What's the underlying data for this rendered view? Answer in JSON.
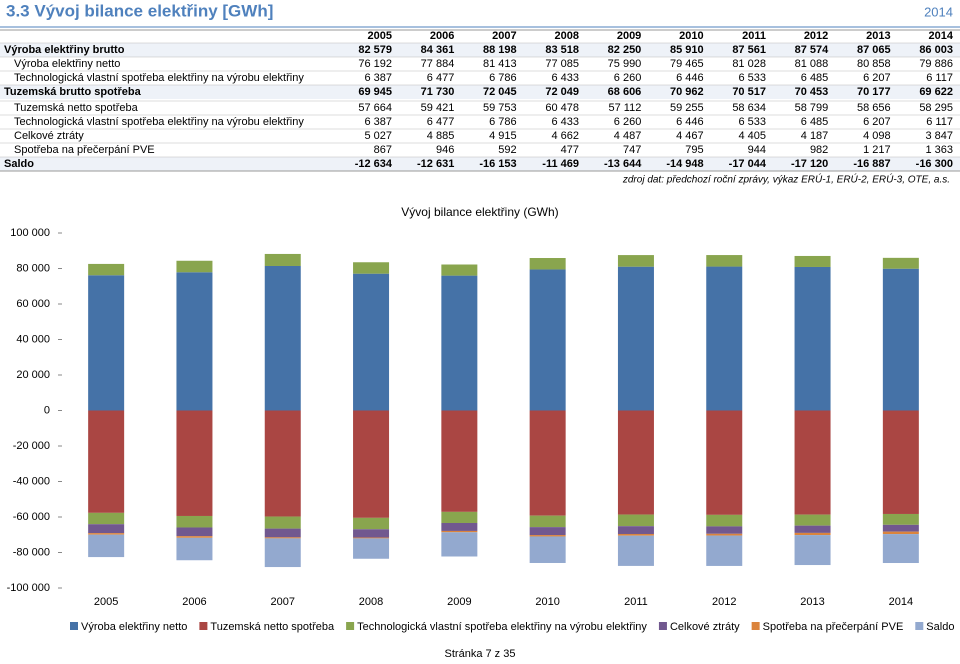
{
  "header": {
    "title": "3.3 Vývoj bilance elektřiny [GWh]",
    "year": "2014"
  },
  "table": {
    "years": [
      "2005",
      "2006",
      "2007",
      "2008",
      "2009",
      "2010",
      "2011",
      "2012",
      "2013",
      "2014"
    ],
    "rows": [
      {
        "label": "Výroba elektřiny brutto",
        "bold": true,
        "values": [
          "82 579",
          "84 361",
          "88 198",
          "83 518",
          "82 250",
          "85 910",
          "87 561",
          "87 574",
          "87 065",
          "86 003"
        ]
      },
      {
        "label": "Výroba elektřiny netto",
        "bold": false,
        "values": [
          "76 192",
          "77 884",
          "81 413",
          "77 085",
          "75 990",
          "79 465",
          "81 028",
          "81 088",
          "80 858",
          "79 886"
        ]
      },
      {
        "label": "Technologická vlastní spotřeba elektřiny na výrobu elektřiny",
        "bold": false,
        "values": [
          "6 387",
          "6 477",
          "6 786",
          "6 433",
          "6 260",
          "6 446",
          "6 533",
          "6 485",
          "6 207",
          "6 117"
        ]
      },
      {
        "label": "Tuzemská brutto spotřeba",
        "bold": true,
        "values": [
          "69 945",
          "71 730",
          "72 045",
          "72 049",
          "68 606",
          "70 962",
          "70 517",
          "70 453",
          "70 177",
          "69 622"
        ]
      },
      {
        "label": "Tuzemská netto spotřeba",
        "bold": false,
        "values": [
          "57 664",
          "59 421",
          "59 753",
          "60 478",
          "57 112",
          "59 255",
          "58 634",
          "58 799",
          "58 656",
          "58 295"
        ]
      },
      {
        "label": "Technologická vlastní spotřeba elektřiny na výrobu elektřiny",
        "bold": false,
        "values": [
          "6 387",
          "6 477",
          "6 786",
          "6 433",
          "6 260",
          "6 446",
          "6 533",
          "6 485",
          "6 207",
          "6 117"
        ]
      },
      {
        "label": "Celkové ztráty",
        "bold": false,
        "values": [
          "5 027",
          "4 885",
          "4 915",
          "4 662",
          "4 487",
          "4 467",
          "4 405",
          "4 187",
          "4 098",
          "3 847"
        ]
      },
      {
        "label": "Spotřeba na přečerpání PVE",
        "bold": false,
        "values": [
          "867",
          "946",
          "592",
          "477",
          "747",
          "795",
          "944",
          "982",
          "1 217",
          "1 363"
        ]
      },
      {
        "label": "Saldo",
        "bold": true,
        "values": [
          "-12 634",
          "-12 631",
          "-16 153",
          "-11 469",
          "-13 644",
          "-14 948",
          "-17 044",
          "-17 120",
          "-16 887",
          "-16 300"
        ]
      }
    ]
  },
  "source": "zdroj dat: předchozí roční zprávy, výkaz ERÚ-1, ERÚ-2, ERÚ-3, OTE, a.s.",
  "chart_data": {
    "type": "stacked_bar",
    "title": "Vývoj bilance elektřiny (GWh)",
    "categories": [
      "2005",
      "2006",
      "2007",
      "2008",
      "2009",
      "2010",
      "2011",
      "2012",
      "2013",
      "2014"
    ],
    "ylim": [
      -100000,
      100000
    ],
    "yticks": [
      {
        "value": -100000,
        "label": "-100 000"
      },
      {
        "value": -80000,
        "label": "-80 000"
      },
      {
        "value": -60000,
        "label": "-60 000"
      },
      {
        "value": -40000,
        "label": "-40 000"
      },
      {
        "value": -20000,
        "label": "-20 000"
      },
      0,
      {
        "value": 20000,
        "label": "20 000"
      },
      {
        "value": 40000,
        "label": "40 000"
      },
      {
        "value": 60000,
        "label": "60 000"
      },
      {
        "value": 80000,
        "label": "80 000"
      },
      {
        "value": 100000,
        "label": "100 000"
      }
    ],
    "grid": false,
    "series": [
      {
        "name": "Výroba elektřiny netto",
        "color": "#4572a7",
        "values": [
          76192,
          77884,
          81413,
          77085,
          75990,
          79465,
          81028,
          81088,
          80858,
          79886
        ]
      },
      {
        "name": "Tuzemská netto spotřeba",
        "color": "#aa4643",
        "values": [
          -57664,
          -59421,
          -59753,
          -60478,
          -57112,
          -59255,
          -58634,
          -58799,
          -58656,
          -58295
        ]
      },
      {
        "name": "Technologická vlastní spotřeba elektřiny na výrobu elektřiny",
        "color": "#89a54e",
        "both_stacks": true,
        "values": [
          6387,
          6477,
          6786,
          6433,
          6260,
          6446,
          6533,
          6485,
          6207,
          6117
        ]
      },
      {
        "name": "Celkové ztráty",
        "color": "#71588f",
        "values": [
          -5027,
          -4885,
          -4915,
          -4662,
          -4487,
          -4467,
          -4405,
          -4187,
          -4098,
          -3847
        ]
      },
      {
        "name": "Spotřeba na přečerpání PVE",
        "color": "#db843d",
        "values": [
          -867,
          -946,
          -592,
          -477,
          -747,
          -795,
          -944,
          -982,
          -1217,
          -1363
        ]
      },
      {
        "name": "Saldo",
        "color": "#93a9cf",
        "values": [
          -12634,
          -12631,
          -16153,
          -11469,
          -13644,
          -14948,
          -17044,
          -17120,
          -16887,
          -16300
        ]
      }
    ]
  },
  "footer": "Stránka 7 z 35"
}
